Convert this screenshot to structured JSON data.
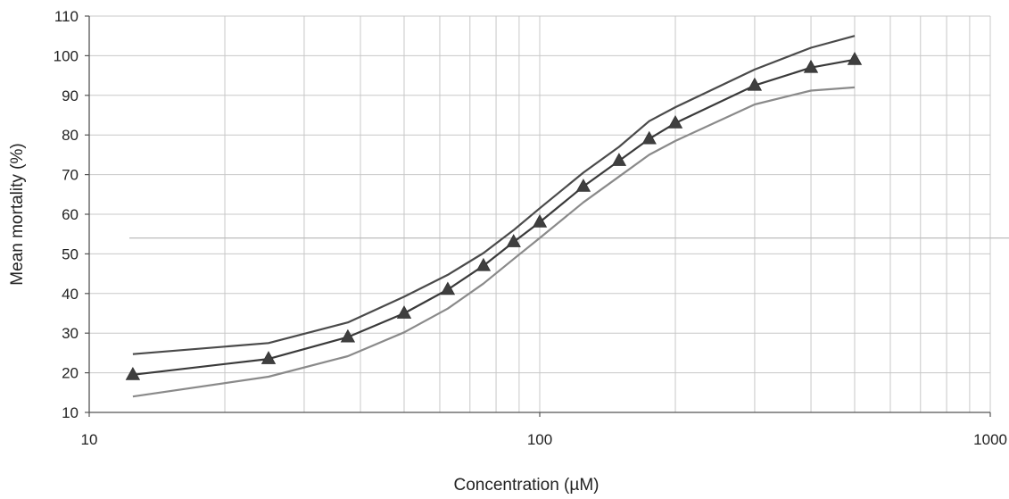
{
  "chart_data": {
    "type": "line",
    "title": "",
    "xlabel": "Concentration (µM)",
    "ylabel": "Mean mortality (%)",
    "xscale": "log",
    "xlim": [
      10,
      1000
    ],
    "ylim": [
      10,
      110
    ],
    "xticks": [
      10,
      100,
      1000
    ],
    "xtick_labels": [
      "10",
      "100",
      "1000"
    ],
    "yticks": [
      10,
      20,
      30,
      40,
      50,
      60,
      70,
      80,
      90,
      100,
      110
    ],
    "ytick_labels": [
      "10",
      "20",
      "30",
      "40",
      "50",
      "60",
      "70",
      "80",
      "90",
      "100",
      "110"
    ],
    "grid": true,
    "reference_line_y": 54,
    "x": [
      12.5,
      25,
      37.5,
      50,
      62.5,
      75,
      87.5,
      100,
      125,
      150,
      175,
      200,
      300,
      400,
      500
    ],
    "series": [
      {
        "marker": "triangle",
        "color": "#3a3a3a",
        "values": [
          19.5,
          23.5,
          29,
          35,
          41,
          47,
          53,
          58,
          67,
          73.5,
          79,
          83,
          92.5,
          97,
          99
        ]
      },
      {
        "marker": "none",
        "color": "#4a4a4a",
        "values": [
          24.7,
          27.5,
          32.7,
          39.2,
          44.7,
          50.2,
          56,
          61.5,
          70.5,
          77,
          83.5,
          87,
          96.5,
          102,
          105
        ]
      },
      {
        "marker": "none",
        "color": "#8a8a8a",
        "values": [
          14,
          19,
          24.2,
          30.2,
          36.2,
          42.5,
          48.7,
          54,
          63,
          69.5,
          75,
          78.5,
          87.7,
          91.2,
          92
        ]
      }
    ]
  }
}
